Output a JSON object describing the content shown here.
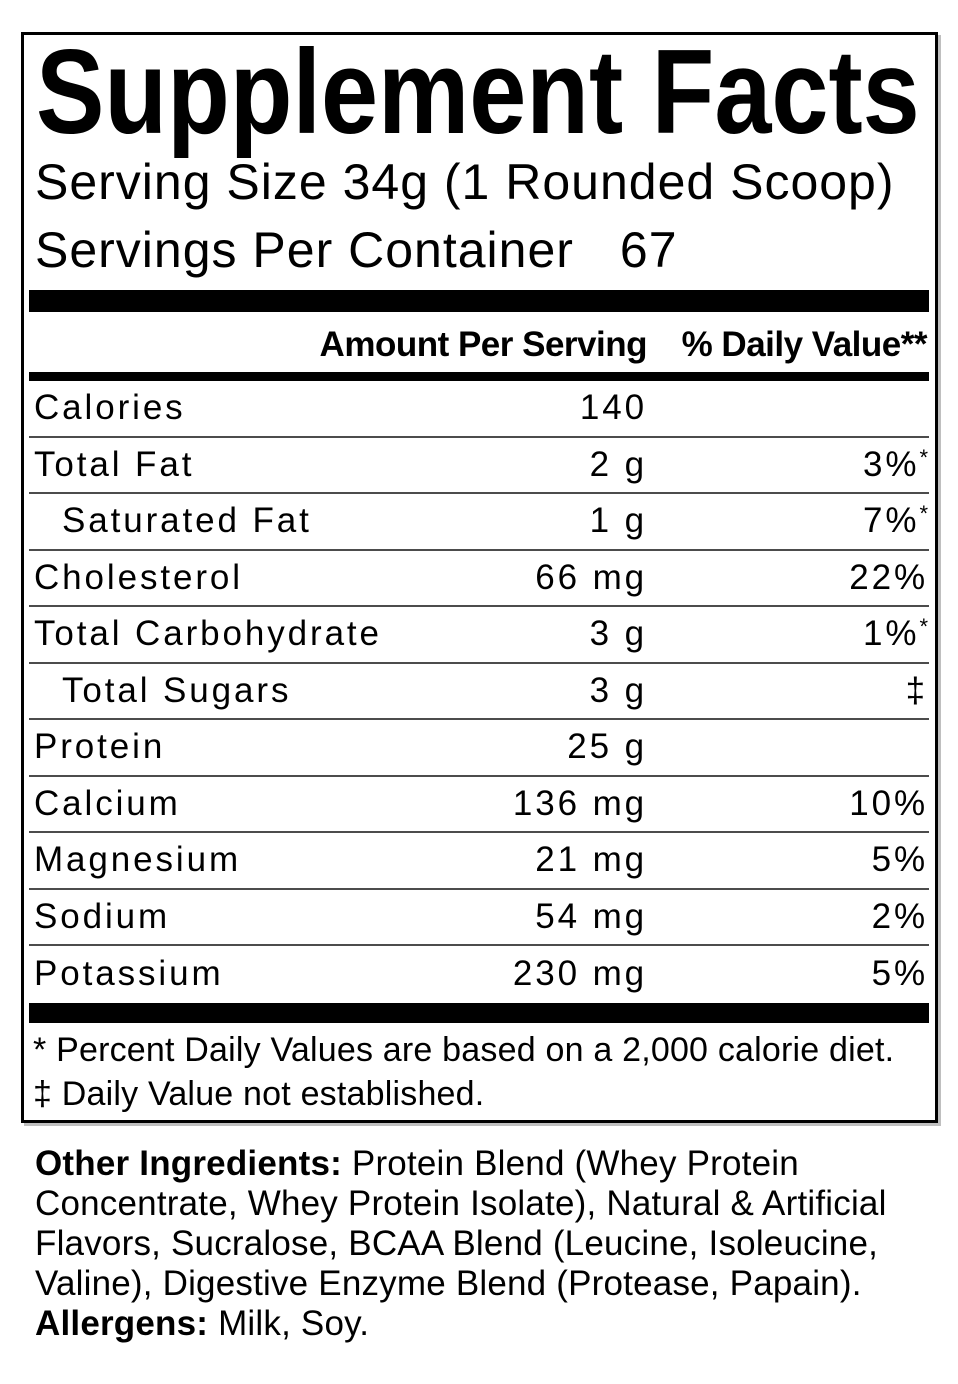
{
  "label": {
    "title": "Supplement Facts",
    "serving_size": "Serving Size 34g (1 Rounded Scoop)",
    "servings_per_container_label": "Servings Per Container",
    "servings_per_container_value": "67"
  },
  "table": {
    "amount_header": "Amount Per Serving",
    "dv_header": "% Daily Value**",
    "rows": [
      {
        "label": "Calories",
        "amount": "140",
        "dv": "",
        "dv_sup": "",
        "indent": false
      },
      {
        "label": "Total Fat",
        "amount": "2 g",
        "dv": "3%",
        "dv_sup": "*",
        "indent": false
      },
      {
        "label": "Saturated Fat",
        "amount": "1 g",
        "dv": "7%",
        "dv_sup": "*",
        "indent": true
      },
      {
        "label": "Cholesterol",
        "amount": "66 mg",
        "dv": "22%",
        "dv_sup": "",
        "indent": false
      },
      {
        "label": "Total Carbohydrate",
        "amount": "3 g",
        "dv": "1%",
        "dv_sup": "*",
        "indent": false
      },
      {
        "label": "Total Sugars",
        "amount": "3 g",
        "dv": "‡",
        "dv_sup": "",
        "indent": true
      },
      {
        "label": "Protein",
        "amount": "25 g",
        "dv": "",
        "dv_sup": "",
        "indent": false
      },
      {
        "label": "Calcium",
        "amount": "136 mg",
        "dv": "10%",
        "dv_sup": "",
        "indent": false
      },
      {
        "label": "Magnesium",
        "amount": "21 mg",
        "dv": "5%",
        "dv_sup": "",
        "indent": false
      },
      {
        "label": "Sodium",
        "amount": "54 mg",
        "dv": "2%",
        "dv_sup": "",
        "indent": false
      },
      {
        "label": "Potassium",
        "amount": "230 mg",
        "dv": "5%",
        "dv_sup": "",
        "indent": false
      }
    ]
  },
  "footnotes": {
    "daily_values": "* Percent Daily Values are based on a 2,000 calorie diet.",
    "not_established": "‡ Daily Value not established."
  },
  "other_ingredients": {
    "lines": [
      {
        "bold": "Other Ingredients:",
        "text": " Protein Blend (Whey Protein"
      },
      {
        "bold": "",
        "text": "Concentrate, Whey Protein Isolate), Natural & Artificial"
      },
      {
        "bold": "",
        "text": "Flavors, Sucralose, BCAA Blend (Leucine, Isoleucine,"
      },
      {
        "bold": "",
        "text": "Valine), Digestive Enzyme Blend (Protease, Papain)."
      },
      {
        "bold": "Allergens:",
        "text": " Milk, Soy."
      }
    ]
  },
  "colors": {
    "text": "#000000",
    "background": "#ffffff",
    "row_separator": "#4c4c4c"
  }
}
